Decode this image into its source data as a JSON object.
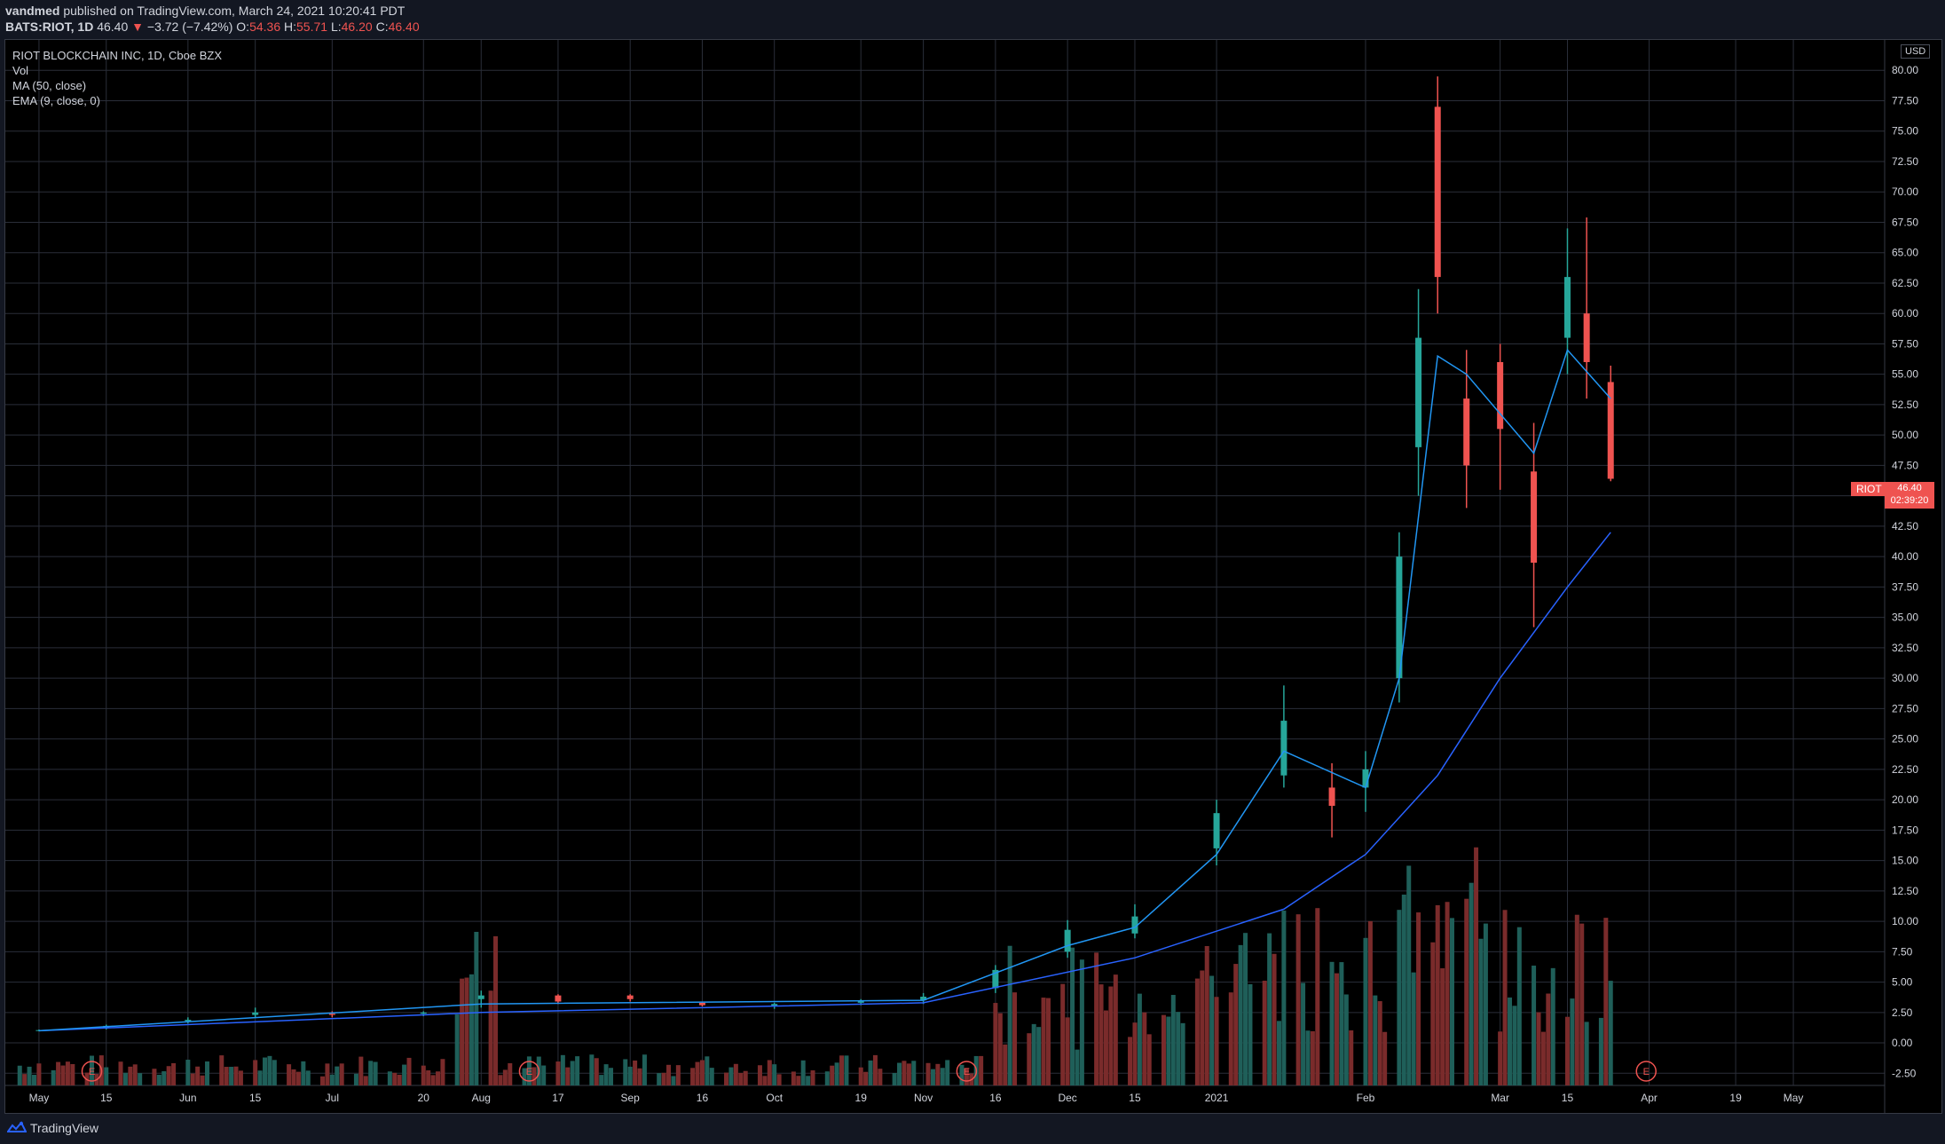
{
  "header": {
    "author": "vandmed",
    "published_text": "published on TradingView.com, March 24, 2021 10:20:41 PDT",
    "symbol": "BATS:RIOT, 1D",
    "last": "46.40",
    "change": "−3.72 (−7.42%)",
    "o_label": "O:",
    "o": "54.36",
    "h_label": "H:",
    "h": "55.71",
    "l_label": "L:",
    "l": "46.20",
    "c_label": "C:",
    "c": "46.40"
  },
  "legend": {
    "title": "RIOT BLOCKCHAIN INC, 1D, Cboe BZX",
    "vol": "Vol",
    "ma": "MA (50, close)",
    "ema": "EMA (9, close, 0)"
  },
  "price_axis": {
    "currency": "USD"
  },
  "price_tag": {
    "symbol": "RIOT",
    "price": "46.40",
    "countdown": "02:39:20"
  },
  "footer": {
    "brand": "TradingView"
  },
  "colors": {
    "up": "#26a69a",
    "down": "#ef5350",
    "ma": "#2962ff",
    "ema": "#2196f3",
    "grid": "#2a2e39"
  },
  "chart_data": {
    "type": "candlestick",
    "title": "RIOT BLOCKCHAIN INC, 1D, Cboe BZX",
    "ylim": [
      -3.5,
      82.5
    ],
    "y_ticks": [
      "80.00",
      "77.50",
      "75.00",
      "72.50",
      "70.00",
      "67.50",
      "65.00",
      "62.50",
      "60.00",
      "57.50",
      "55.00",
      "52.50",
      "50.00",
      "47.50",
      "45.00",
      "42.50",
      "40.00",
      "37.50",
      "35.00",
      "32.50",
      "30.00",
      "27.50",
      "25.00",
      "22.50",
      "20.00",
      "17.50",
      "15.00",
      "12.50",
      "10.00",
      "7.50",
      "5.00",
      "2.50",
      "0.00",
      "-2.50"
    ],
    "x_ticks": [
      "May",
      "15",
      "Jun",
      "15",
      "Jul",
      "20",
      "Aug",
      "17",
      "Sep",
      "16",
      "Oct",
      "19",
      "Nov",
      "16",
      "Dec",
      "15",
      "2021",
      "Feb",
      "Mar",
      "15",
      "Apr",
      "19",
      "May"
    ],
    "earnings_markers": [
      "E",
      "E",
      "E",
      "E"
    ],
    "grid": true,
    "series": [
      {
        "name": "Price (OHLC)",
        "points": [
          {
            "t": "2020-05-01",
            "o": 1.0,
            "h": 1.1,
            "l": 0.95,
            "c": 1.05
          },
          {
            "t": "2020-05-15",
            "o": 1.2,
            "h": 1.5,
            "l": 1.1,
            "c": 1.4
          },
          {
            "t": "2020-06-01",
            "o": 1.8,
            "h": 2.1,
            "l": 1.6,
            "c": 1.9
          },
          {
            "t": "2020-06-15",
            "o": 2.3,
            "h": 2.9,
            "l": 2.1,
            "c": 2.5
          },
          {
            "t": "2020-07-01",
            "o": 2.4,
            "h": 2.6,
            "l": 2.1,
            "c": 2.3
          },
          {
            "t": "2020-07-20",
            "o": 2.4,
            "h": 2.6,
            "l": 2.2,
            "c": 2.5
          },
          {
            "t": "2020-08-01",
            "o": 3.6,
            "h": 4.3,
            "l": 2.9,
            "c": 3.9
          },
          {
            "t": "2020-08-17",
            "o": 3.9,
            "h": 4.0,
            "l": 3.2,
            "c": 3.4
          },
          {
            "t": "2020-09-01",
            "o": 3.9,
            "h": 4.0,
            "l": 3.4,
            "c": 3.6
          },
          {
            "t": "2020-09-16",
            "o": 3.3,
            "h": 3.4,
            "l": 3.0,
            "c": 3.1
          },
          {
            "t": "2020-10-01",
            "o": 3.0,
            "h": 3.3,
            "l": 2.8,
            "c": 3.2
          },
          {
            "t": "2020-10-19",
            "o": 3.3,
            "h": 3.6,
            "l": 3.1,
            "c": 3.5
          },
          {
            "t": "2020-11-01",
            "o": 3.5,
            "h": 4.1,
            "l": 3.2,
            "c": 3.8
          },
          {
            "t": "2020-11-16",
            "o": 4.5,
            "h": 6.4,
            "l": 4.1,
            "c": 6.0
          },
          {
            "t": "2020-12-01",
            "o": 7.5,
            "h": 10.1,
            "l": 7.0,
            "c": 9.3
          },
          {
            "t": "2020-12-15",
            "o": 9.0,
            "h": 11.4,
            "l": 8.6,
            "c": 10.4
          },
          {
            "t": "2021-01-01",
            "o": 16.0,
            "h": 20.0,
            "l": 14.6,
            "c": 18.9
          },
          {
            "t": "2021-01-15",
            "o": 22.0,
            "h": 29.4,
            "l": 21.0,
            "c": 26.5
          },
          {
            "t": "2021-01-25",
            "o": 21.0,
            "h": 23.0,
            "l": 16.9,
            "c": 19.5
          },
          {
            "t": "2021-02-01",
            "o": 21.0,
            "h": 24.0,
            "l": 19.0,
            "c": 22.5
          },
          {
            "t": "2021-02-08",
            "o": 30.0,
            "h": 42.0,
            "l": 28.0,
            "c": 40.0
          },
          {
            "t": "2021-02-12",
            "o": 49.0,
            "h": 62.0,
            "l": 45.0,
            "c": 58.0
          },
          {
            "t": "2021-02-16",
            "o": 77.0,
            "h": 79.5,
            "l": 60.0,
            "c": 63.0
          },
          {
            "t": "2021-02-22",
            "o": 53.0,
            "h": 57.0,
            "l": 44.0,
            "c": 47.5
          },
          {
            "t": "2021-03-01",
            "o": 56.0,
            "h": 57.5,
            "l": 45.5,
            "c": 50.5
          },
          {
            "t": "2021-03-08",
            "o": 47.0,
            "h": 51.0,
            "l": 34.2,
            "c": 39.5
          },
          {
            "t": "2021-03-15",
            "o": 58.0,
            "h": 67.0,
            "l": 55.0,
            "c": 63.0
          },
          {
            "t": "2021-03-19",
            "o": 60.0,
            "h": 67.9,
            "l": 53.0,
            "c": 56.0
          },
          {
            "t": "2021-03-24",
            "o": 54.36,
            "h": 55.71,
            "l": 46.2,
            "c": 46.4
          }
        ]
      },
      {
        "name": "MA (50, close)",
        "points": [
          {
            "t": "2020-05-01",
            "v": 1.0
          },
          {
            "t": "2020-08-01",
            "v": 2.5
          },
          {
            "t": "2020-11-01",
            "v": 3.3
          },
          {
            "t": "2020-12-15",
            "v": 7.0
          },
          {
            "t": "2021-01-15",
            "v": 11.0
          },
          {
            "t": "2021-02-01",
            "v": 15.5
          },
          {
            "t": "2021-02-16",
            "v": 22.0
          },
          {
            "t": "2021-03-01",
            "v": 30.0
          },
          {
            "t": "2021-03-15",
            "v": 37.5
          },
          {
            "t": "2021-03-24",
            "v": 42.0
          }
        ]
      },
      {
        "name": "EMA (9, close, 0)",
        "points": [
          {
            "t": "2020-05-01",
            "v": 1.0
          },
          {
            "t": "2020-08-01",
            "v": 3.2
          },
          {
            "t": "2020-11-01",
            "v": 3.5
          },
          {
            "t": "2020-12-01",
            "v": 8.0
          },
          {
            "t": "2020-12-15",
            "v": 9.5
          },
          {
            "t": "2021-01-01",
            "v": 15.5
          },
          {
            "t": "2021-01-15",
            "v": 24.0
          },
          {
            "t": "2021-02-01",
            "v": 21.0
          },
          {
            "t": "2021-02-08",
            "v": 30.0
          },
          {
            "t": "2021-02-16",
            "v": 56.5
          },
          {
            "t": "2021-02-22",
            "v": 55.0
          },
          {
            "t": "2021-03-08",
            "v": 48.5
          },
          {
            "t": "2021-03-15",
            "v": 57.0
          },
          {
            "t": "2021-03-24",
            "v": 53.0
          }
        ]
      }
    ],
    "volume_note": "Vol"
  }
}
